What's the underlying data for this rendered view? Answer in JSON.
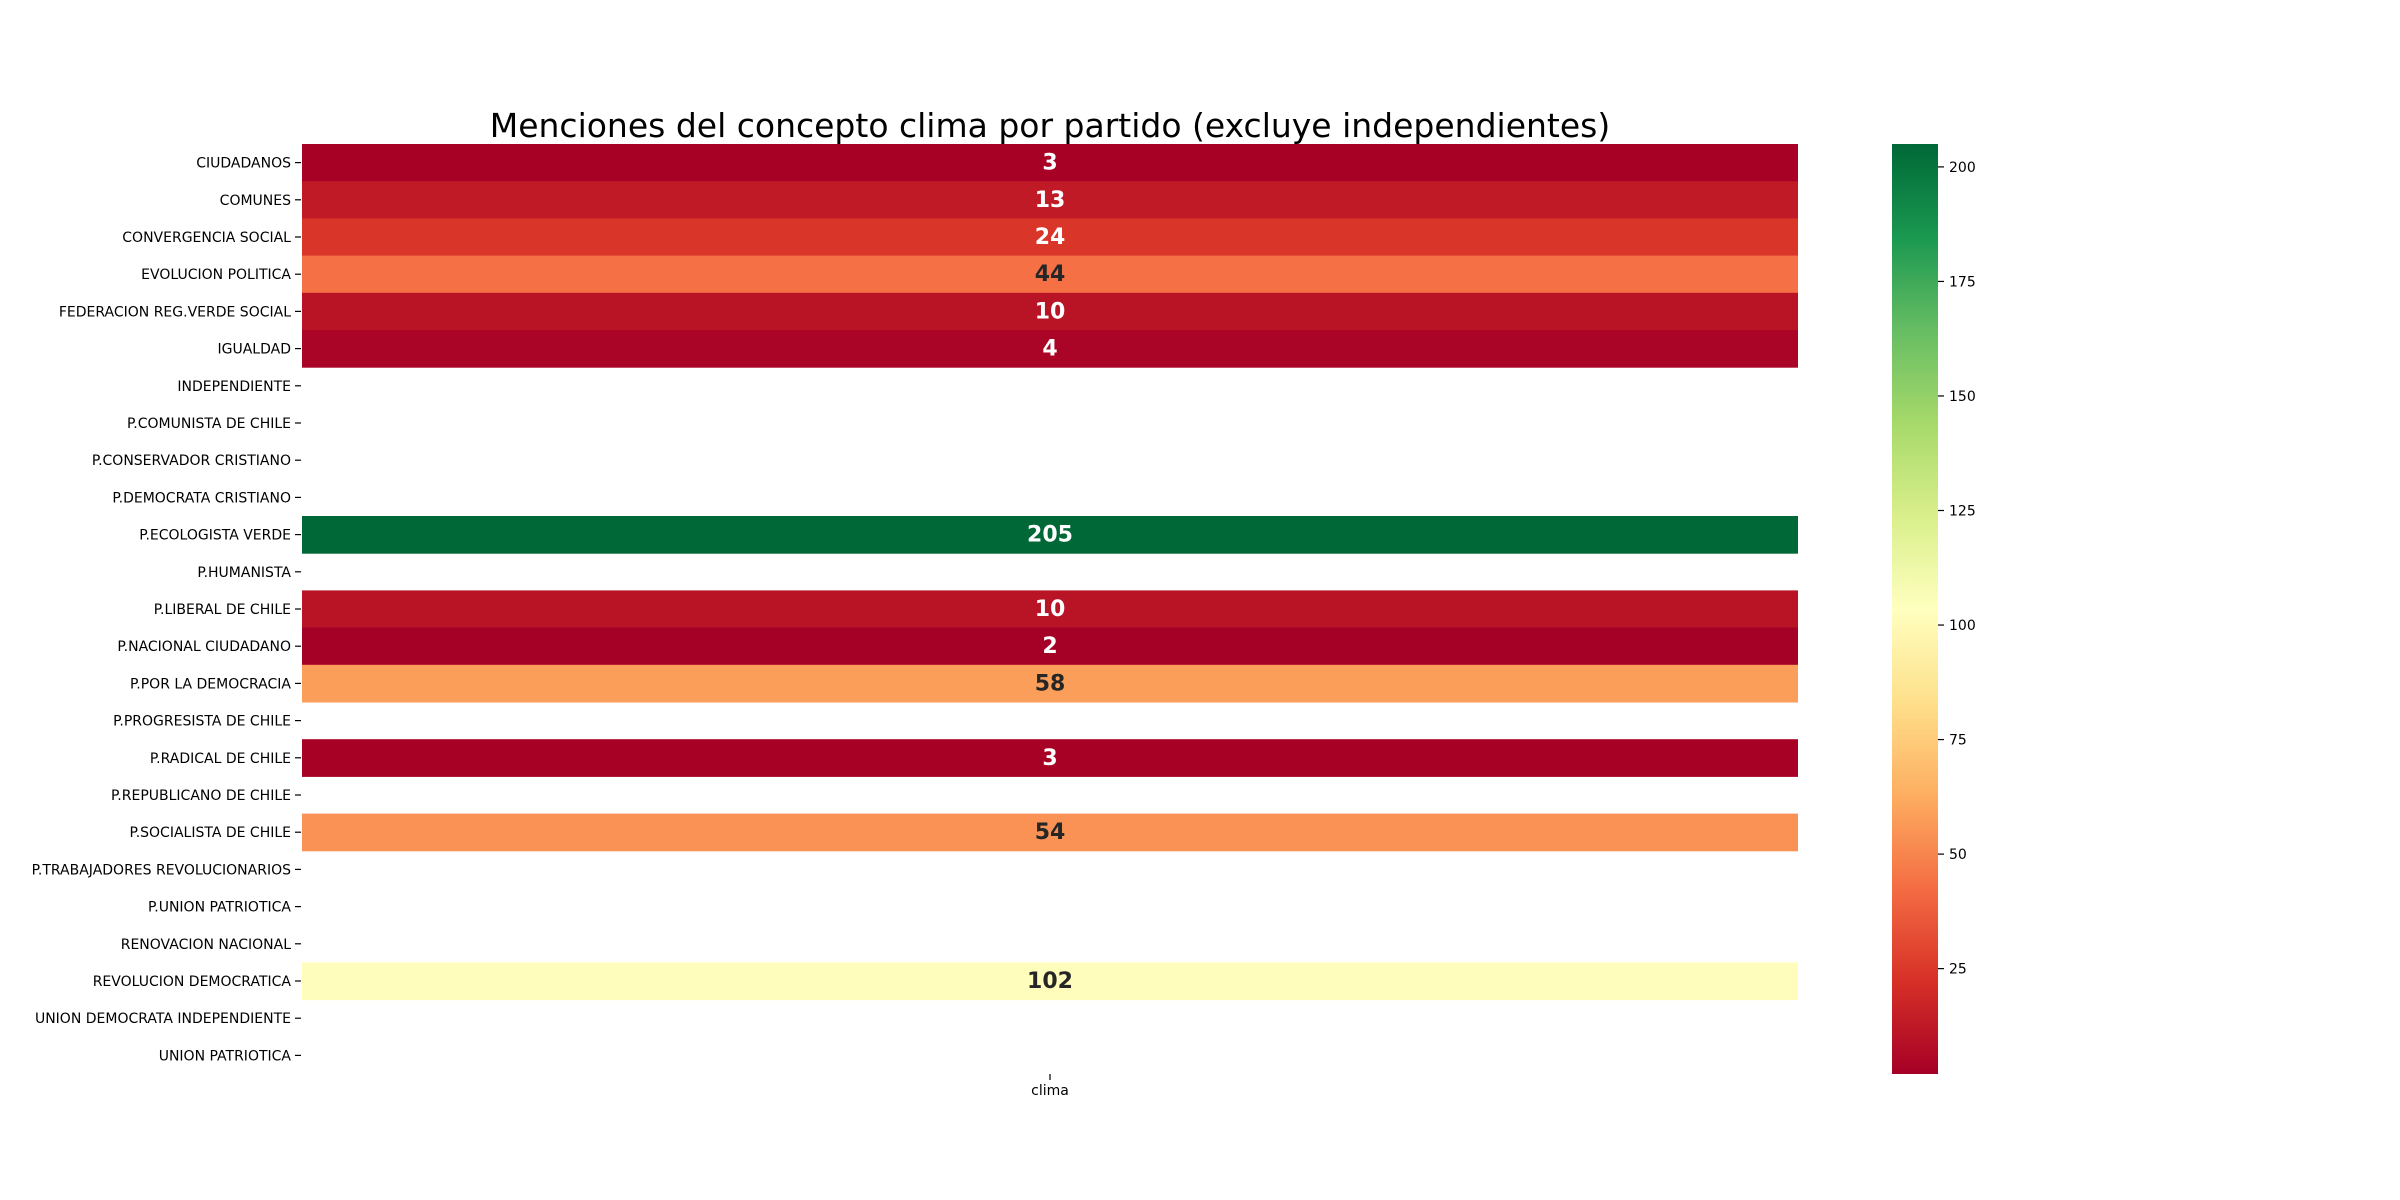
{
  "chart_data": {
    "type": "heatmap",
    "title": "Menciones del concepto clima por partido (excluye independientes)",
    "xlabel": "",
    "ylabel": "",
    "columns": [
      "clima"
    ],
    "rows": [
      "CIUDADANOS",
      "COMUNES",
      "CONVERGENCIA SOCIAL",
      "EVOLUCION POLITICA",
      "FEDERACION REG.VERDE SOCIAL",
      "IGUALDAD",
      "INDEPENDIENTE",
      "P.COMUNISTA DE CHILE",
      "P.CONSERVADOR CRISTIANO",
      "P.DEMOCRATA CRISTIANO",
      "P.ECOLOGISTA VERDE",
      "P.HUMANISTA",
      "P.LIBERAL DE CHILE",
      "P.NACIONAL CIUDADANO",
      "P.POR LA DEMOCRACIA",
      "P.PROGRESISTA DE CHILE",
      "P.RADICAL DE CHILE",
      "P.REPUBLICANO DE CHILE",
      "P.SOCIALISTA DE CHILE",
      "P.TRABAJADORES REVOLUCIONARIOS",
      "P.UNION PATRIOTICA",
      "RENOVACION NACIONAL",
      "REVOLUCION DEMOCRATICA",
      "UNION DEMOCRATA INDEPENDIENTE",
      "UNION PATRIOTICA"
    ],
    "values": [
      3,
      13,
      24,
      44,
      10,
      4,
      null,
      null,
      null,
      null,
      205,
      null,
      10,
      2,
      58,
      null,
      3,
      null,
      54,
      null,
      null,
      null,
      102,
      null,
      null
    ],
    "colormap": "RdYlGn",
    "colorbar": {
      "min": 2,
      "max": 205,
      "ticks": [
        25,
        50,
        75,
        100,
        125,
        150,
        175,
        200
      ],
      "tick_labels": [
        "25",
        "50",
        "75",
        "100",
        "125",
        "150",
        "175",
        "200"
      ]
    },
    "grid": false,
    "legend": "colorbar-right"
  }
}
